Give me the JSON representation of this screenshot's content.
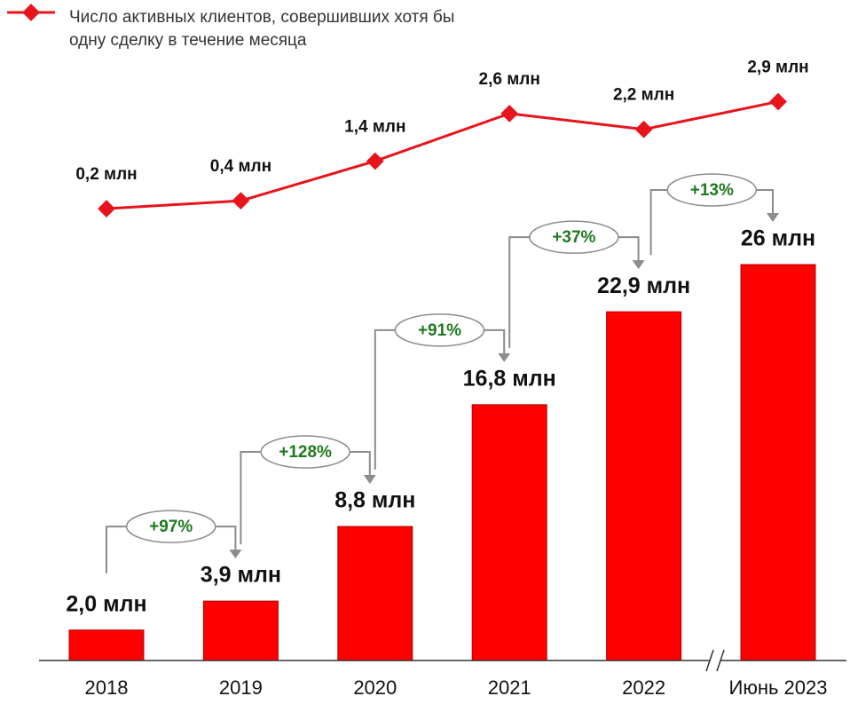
{
  "chart_data": {
    "type": "bar",
    "categories": [
      "2018",
      "2019",
      "2020",
      "2021",
      "2022",
      "Июнь 2023"
    ],
    "ylim": [
      0,
      26
    ],
    "y2lim": [
      0,
      3
    ],
    "series": [
      {
        "type": "bar",
        "color": "#ff0000",
        "values": [
          2.0,
          3.9,
          8.8,
          16.8,
          22.9,
          26
        ],
        "value_labels": [
          "2,0 млн",
          "3,9 млн",
          "8,8 млн",
          "16,8 млн",
          "22,9 млн",
          "26 млн"
        ]
      },
      {
        "type": "line",
        "axis": "y2",
        "name": "Число активных клиентов, совершивших хотя бы одну сделку в течение месяца",
        "color": "#e8141c",
        "values": [
          0.2,
          0.4,
          1.4,
          2.6,
          2.2,
          2.9
        ],
        "value_labels": [
          "0,2 млн",
          "0,4 млн",
          "1,4 млн",
          "2,6 млн",
          "2,2 млн",
          "2,9 млн"
        ]
      }
    ],
    "annotations": [
      "+97%",
      "+128%",
      "+91%",
      "+37%",
      "+13%"
    ]
  }
}
